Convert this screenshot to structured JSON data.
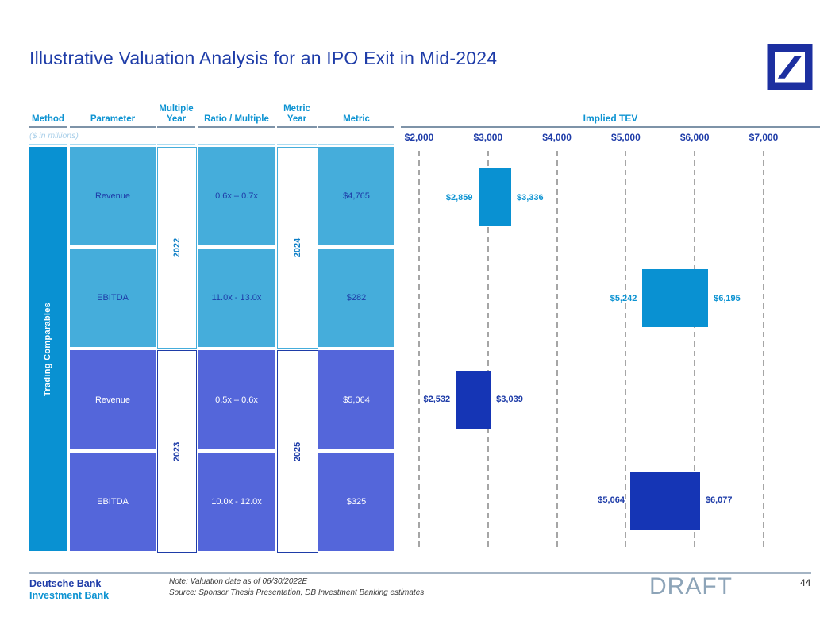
{
  "slide": {
    "title": "Illustrative Valuation Analysis for an IPO Exit in Mid-2024",
    "units_note": "($ in millions)",
    "watermark": "DRAFT",
    "page_number": "44",
    "footer": {
      "brand_line1": "Deutsche Bank",
      "brand_line2": "Investment Bank",
      "note_line1": "Note: Valuation date as of 06/30/2022E",
      "note_line2": "Source: Sponsor Thesis Presentation, DB Investment Banking estimates"
    }
  },
  "table": {
    "headers": {
      "method": "Method",
      "parameter": "Parameter",
      "multiple_year": "Multiple Year",
      "ratio_multiple": "Ratio / Multiple",
      "metric_year": "Metric Year",
      "metric": "Metric",
      "implied_tev": "Implied TEV"
    },
    "method_label": "Trading Comparables",
    "year_groups": [
      {
        "multiple_year": "2022",
        "metric_year": "2024"
      },
      {
        "multiple_year": "2023",
        "metric_year": "2025"
      }
    ],
    "rows": [
      {
        "parameter": "Revenue",
        "ratio": "0.6x – 0.7x",
        "metric": "$4,765"
      },
      {
        "parameter": "EBITDA",
        "ratio": "11.0x - 13.0x",
        "metric": "$282"
      },
      {
        "parameter": "Revenue",
        "ratio": "0.5x – 0.6x",
        "metric": "$5,064"
      },
      {
        "parameter": "EBITDA",
        "ratio": "10.0x - 12.0x",
        "metric": "$325"
      }
    ]
  },
  "chart_data": {
    "type": "bar",
    "subtype": "horizontal-range (valuation football field)",
    "title": "Implied TEV",
    "xlabel": "Implied TEV ($ in millions)",
    "ylabel": "",
    "grid": "dashed vertical gridlines at each tick",
    "legend_position": "none",
    "x_axis": {
      "min": 2000,
      "max": 7000,
      "tick_interval": 1000,
      "ticks": [
        {
          "value": 2000,
          "label": "$2,000"
        },
        {
          "value": 3000,
          "label": "$3,000"
        },
        {
          "value": 4000,
          "label": "$4,000"
        },
        {
          "value": 5000,
          "label": "$5,000"
        },
        {
          "value": 6000,
          "label": "$6,000"
        },
        {
          "value": 7000,
          "label": "$7,000"
        }
      ]
    },
    "bars": [
      {
        "name": "Trading Comparables – 2022 Revenue (0.6x–0.7x)",
        "low": 2859,
        "high": 3336,
        "low_label": "$2,859",
        "high_label": "$3,336",
        "color": "#0991d2",
        "label_color": "#0d93d2"
      },
      {
        "name": "Trading Comparables – 2022 EBITDA (11.0x–13.0x)",
        "low": 5242,
        "high": 6195,
        "low_label": "$5,242",
        "high_label": "$6,195",
        "color": "#0991d2",
        "label_color": "#0d93d2"
      },
      {
        "name": "Trading Comparables – 2023 Revenue (0.5x–0.6x)",
        "low": 2532,
        "high": 3039,
        "low_label": "$2,532",
        "high_label": "$3,039",
        "color": "#1535b5",
        "label_color": "#1e3ca8"
      },
      {
        "name": "Trading Comparables – 2023 EBITDA (10.0x–12.0x)",
        "low": 5064,
        "high": 6077,
        "low_label": "$5,064",
        "high_label": "$6,077",
        "color": "#1535b5",
        "label_color": "#1e3ca8"
      }
    ]
  },
  "colors": {
    "navy": "#1e3ca8",
    "cyan": "#0d93d2",
    "cyan_strong": "#0991d2",
    "light_blue_cell": "#45addb",
    "purple_cell": "#5466da",
    "royal_bar": "#1535b5",
    "pale_blue_text": "#a9cfe9",
    "header_rule": "#7e93a8",
    "light_rule": "#aadcf2",
    "grid_dash": "#a6a6a6",
    "year_top_text": "#0c7ec6",
    "note_text": "#3a3a3a",
    "draft_gray": "#8da4b8",
    "footer_rule": "#a4b4c4",
    "logo_navy": "#1c2fa0"
  }
}
